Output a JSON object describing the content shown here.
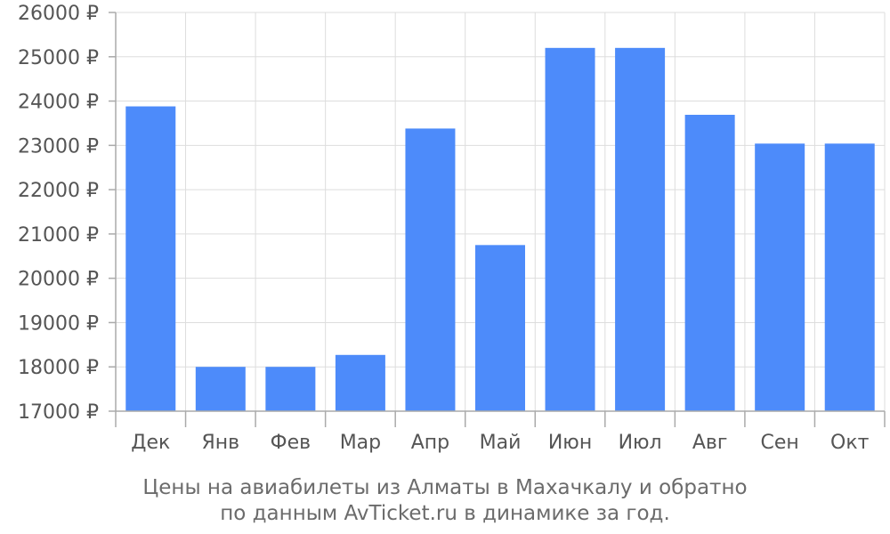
{
  "chart_data": {
    "type": "bar",
    "categories": [
      "Дек",
      "Янв",
      "Фев",
      "Мар",
      "Апр",
      "Май",
      "Июн",
      "Июл",
      "Авг",
      "Сен",
      "Окт"
    ],
    "values": [
      23880,
      18000,
      18000,
      18270,
      23380,
      20750,
      25200,
      25200,
      23690,
      23040,
      23040
    ],
    "ylim": [
      17000,
      26000
    ],
    "yticks": [
      17000,
      18000,
      19000,
      20000,
      21000,
      22000,
      23000,
      24000,
      25000,
      26000
    ],
    "ytick_suffix": " ₽",
    "grid": true,
    "bar_color": "#4d8bfa",
    "caption_line1": "Цены на авиабилеты из Алматы в Махачкалу и обратно",
    "caption_line2": "по данным AvTicket.ru в динамике за год."
  }
}
